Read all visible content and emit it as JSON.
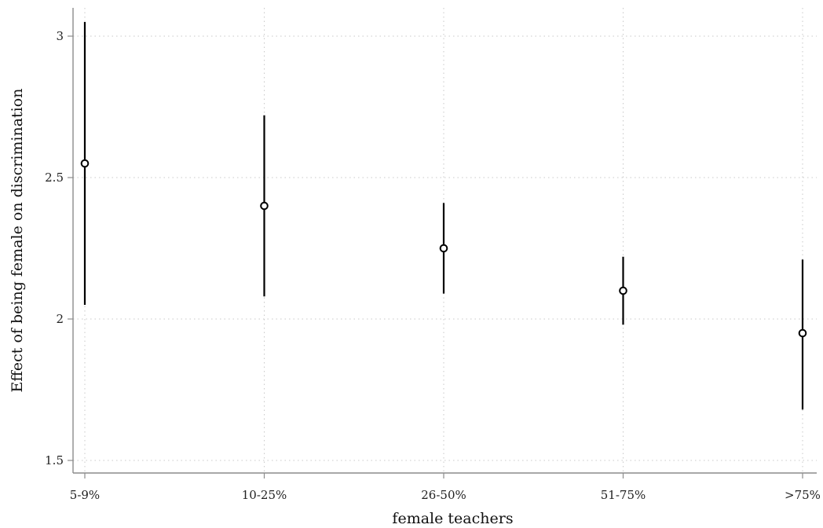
{
  "chart_data": {
    "type": "scatter",
    "xlabel": "female teachers",
    "ylabel": "Effect of being female on discrimination",
    "categories": [
      "5-9%",
      "10-25%",
      "26-50%",
      "51-75%",
      ">75%"
    ],
    "ylim": [
      1.45,
      3.05
    ],
    "yticks": [
      1.5,
      2,
      2.5,
      3
    ],
    "ytick_labels": [
      "1.5",
      "2",
      "2.5",
      "3"
    ],
    "grid": true,
    "series": [
      {
        "values": [
          2.55,
          2.4,
          2.25,
          2.1,
          1.95
        ],
        "ci_low": [
          2.05,
          2.08,
          2.09,
          1.98,
          1.68
        ],
        "ci_high": [
          3.05,
          2.72,
          2.41,
          2.22,
          2.21
        ]
      }
    ]
  }
}
